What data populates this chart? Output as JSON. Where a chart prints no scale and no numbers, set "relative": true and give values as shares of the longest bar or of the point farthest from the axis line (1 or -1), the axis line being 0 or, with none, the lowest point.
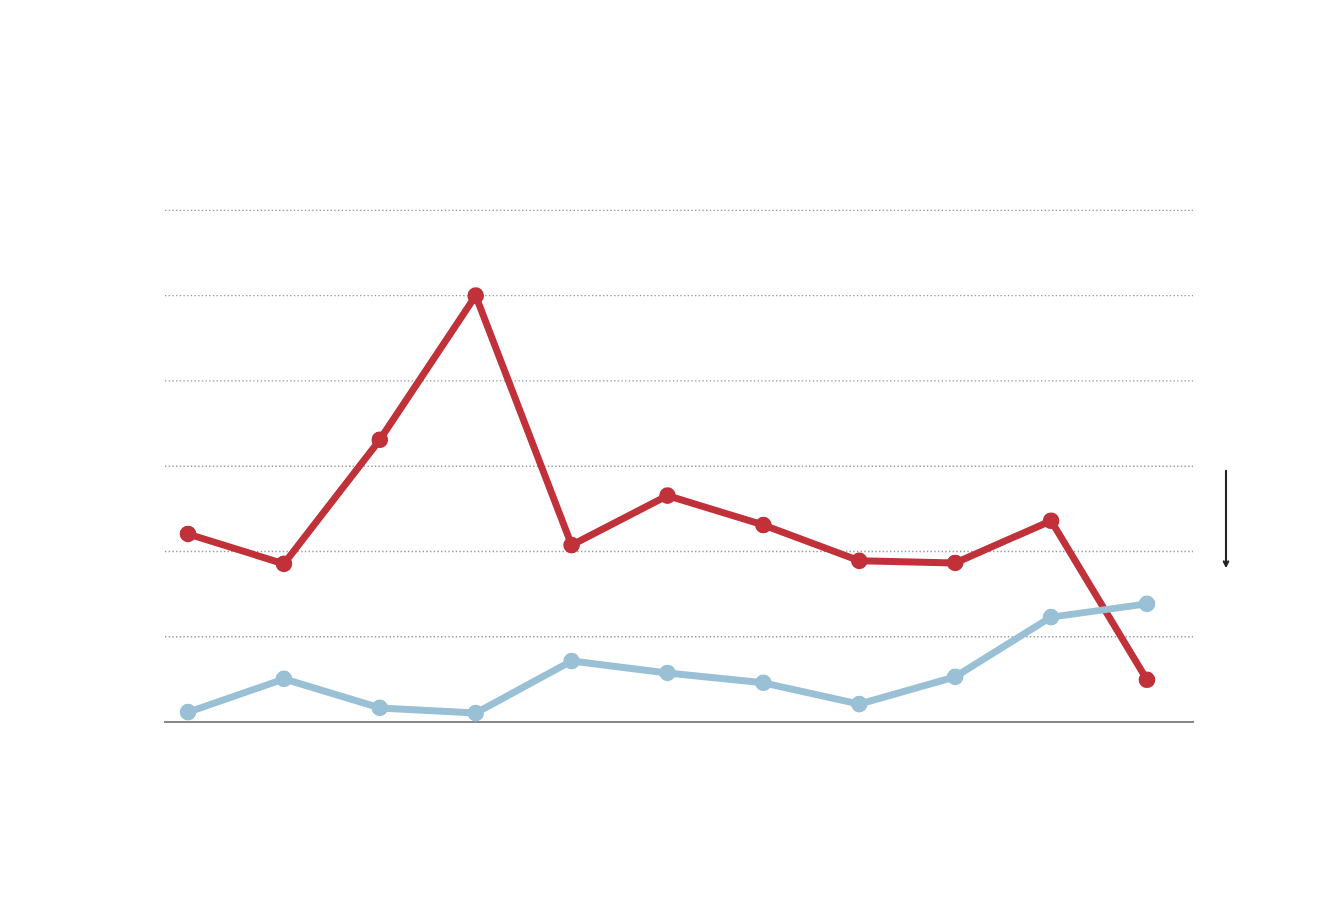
{
  "chart_data": {
    "type": "line",
    "relative": true,
    "categories": [
      null,
      null,
      null,
      null,
      null,
      null,
      null,
      null,
      null,
      null,
      null
    ],
    "series": [
      {
        "color": "#c0313a",
        "values": [
          0.441,
          0.371,
          0.662,
          1.0,
          0.415,
          0.531,
          0.462,
          0.378,
          0.373,
          0.472,
          0.099
        ]
      },
      {
        "color": "#9ac0d6",
        "values": [
          0.023,
          0.101,
          0.033,
          0.021,
          0.143,
          0.115,
          0.092,
          0.042,
          0.106,
          0.246,
          0.277
        ]
      }
    ],
    "marker": "circle",
    "line_style": "solid",
    "grid": "y"
  }
}
